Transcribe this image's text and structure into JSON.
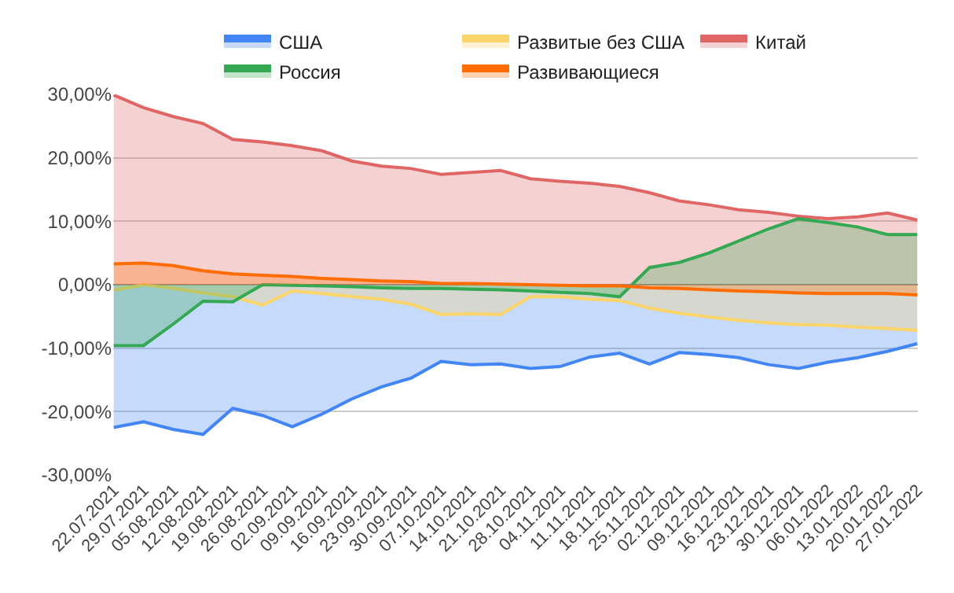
{
  "chart_data": {
    "type": "area",
    "categories": [
      "22.07.2021",
      "29.07.2021",
      "05.08.2021",
      "12.08.2021",
      "19.08.2021",
      "26.08.2021",
      "02.09.2021",
      "09.09.2021",
      "16.09.2021",
      "23.09.2021",
      "30.09.2021",
      "07.10.2021",
      "14.10.2021",
      "21.10.2021",
      "28.10.2021",
      "04.11.2021",
      "11.11.2021",
      "18.11.2021",
      "25.11.2021",
      "02.12.2021",
      "09.12.2021",
      "16.12.2021",
      "23.12.2021",
      "30.12.2021",
      "06.01.2022",
      "13.01.2022",
      "20.01.2022",
      "27.01.2022"
    ],
    "series": [
      {
        "name": "США",
        "color": "#4285f4",
        "values": [
          -22.5,
          -21.6,
          -22.8,
          -23.6,
          -19.5,
          -20.6,
          -22.4,
          -20.4,
          -18.0,
          -16.1,
          -14.7,
          -12.1,
          -12.6,
          -12.5,
          -13.2,
          -12.9,
          -11.4,
          -10.8,
          -12.5,
          -10.7,
          -11.0,
          -11.5,
          -12.6,
          -13.2,
          -12.2,
          -11.5,
          -10.5,
          -9.3
        ]
      },
      {
        "name": "Развитые без США",
        "color": "#fbd569",
        "values": [
          -0.9,
          0.0,
          -0.6,
          -1.3,
          -1.9,
          -3.2,
          -1.0,
          -1.4,
          -1.9,
          -2.3,
          -3.1,
          -4.7,
          -4.6,
          -4.7,
          -1.9,
          -1.9,
          -2.3,
          -2.5,
          -3.7,
          -4.5,
          -5.1,
          -5.6,
          -6.0,
          -6.3,
          -6.4,
          -6.7,
          -6.9,
          -7.2
        ]
      },
      {
        "name": "Китай",
        "color": "#e06666",
        "values": [
          29.9,
          27.9,
          26.5,
          25.4,
          22.9,
          22.5,
          21.9,
          21.1,
          19.5,
          18.7,
          18.3,
          17.4,
          17.7,
          18.0,
          16.7,
          16.3,
          16.0,
          15.5,
          14.5,
          13.2,
          12.6,
          11.8,
          11.4,
          10.8,
          10.4,
          10.7,
          11.3,
          10.2
        ]
      },
      {
        "name": "Россия",
        "color": "#34a853",
        "values": [
          -9.6,
          -9.6,
          -6.2,
          -2.6,
          -2.7,
          0.0,
          -0.1,
          -0.2,
          -0.3,
          -0.5,
          -0.6,
          -0.6,
          -0.7,
          -0.8,
          -1.0,
          -1.2,
          -1.4,
          -1.9,
          2.7,
          3.5,
          5.0,
          6.9,
          8.8,
          10.4,
          9.8,
          9.1,
          7.9,
          7.9
        ]
      },
      {
        "name": "Развивающиеся",
        "color": "#ff6d01",
        "values": [
          3.3,
          3.4,
          3.0,
          2.2,
          1.7,
          1.5,
          1.3,
          1.0,
          0.8,
          0.6,
          0.5,
          0.2,
          0.2,
          0.1,
          0.0,
          -0.1,
          -0.2,
          -0.2,
          -0.5,
          -0.6,
          -0.8,
          -1.0,
          -1.1,
          -1.3,
          -1.4,
          -1.4,
          -1.4,
          -1.6
        ]
      }
    ],
    "ylim": [
      -30,
      30
    ],
    "yticks": [
      {
        "value": -30,
        "label": "-30,00%"
      },
      {
        "value": -20,
        "label": "-20,00%"
      },
      {
        "value": -10,
        "label": "-10,00%"
      },
      {
        "value": 0,
        "label": "0,00%"
      },
      {
        "value": 10,
        "label": "10,00%"
      },
      {
        "value": 20,
        "label": "20,00%"
      },
      {
        "value": 30,
        "label": "30,00%"
      }
    ],
    "grid": "y",
    "legend": "top"
  }
}
